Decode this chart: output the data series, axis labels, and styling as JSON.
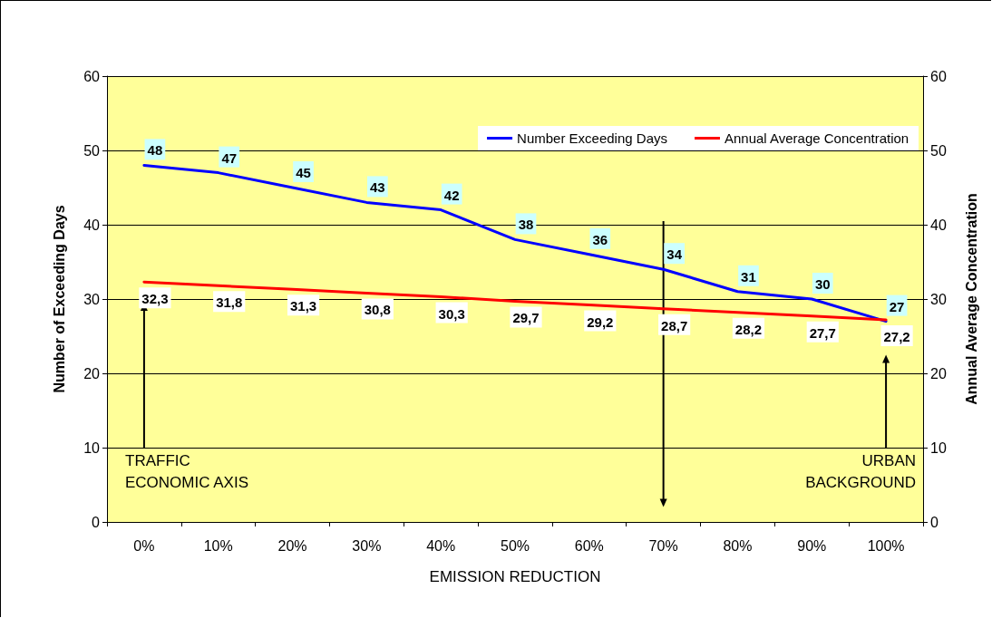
{
  "chart_data": {
    "type": "line",
    "xlabel": "EMISSION REDUCTION",
    "ylabel": "Number of Exceeding Days",
    "y2label": "Annual Average Concentration",
    "categories": [
      "0%",
      "10%",
      "20%",
      "30%",
      "40%",
      "50%",
      "60%",
      "70%",
      "80%",
      "90%",
      "100%"
    ],
    "series": [
      {
        "name": "Number Exceeding Days",
        "color": "#0000ff",
        "values": [
          48,
          47,
          45,
          43,
          42,
          38,
          36,
          34,
          31,
          30,
          27
        ],
        "value_labels": [
          "48",
          "47",
          "45",
          "43",
          "42",
          "38",
          "36",
          "34",
          "31",
          "30",
          "27"
        ]
      },
      {
        "name": "Annual Average Concentration",
        "color": "#ff0000",
        "axis": "y2",
        "values": [
          32.3,
          31.8,
          31.3,
          30.8,
          30.3,
          29.7,
          29.2,
          28.7,
          28.2,
          27.7,
          27.2
        ],
        "value_labels": [
          "32,3",
          "31,8",
          "31,3",
          "30,8",
          "30,3",
          "29,7",
          "29,2",
          "28,7",
          "28,2",
          "27,7",
          "27,2"
        ]
      }
    ],
    "ylim": [
      0,
      60
    ],
    "yticks": [
      0,
      10,
      20,
      30,
      40,
      50,
      60
    ],
    "y2lim": [
      0,
      60
    ],
    "y2ticks": [
      0,
      10,
      20,
      30,
      40,
      50,
      60
    ],
    "grid": "y",
    "legend": "top right",
    "marker": "none",
    "line_style": "solid",
    "annotations": [
      "TRAFFIC\nECONOMIC AXIS",
      "URBAN\nBACKGROUND"
    ]
  }
}
